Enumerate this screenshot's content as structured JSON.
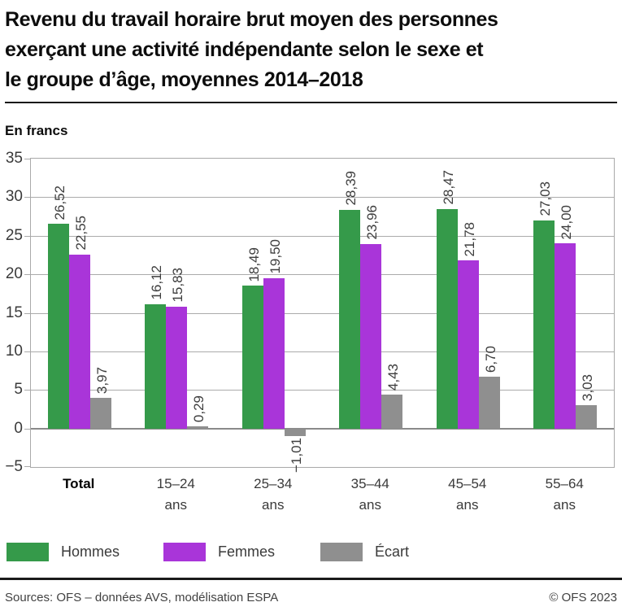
{
  "title": {
    "lines": [
      "Revenu du travail horaire brut moyen des personnes",
      "exerçant une activité indépendante selon le sexe et",
      "le groupe d’âge, moyennes 2014–2018"
    ]
  },
  "unit_label": "En francs",
  "chart_data": {
    "type": "bar",
    "title": "Revenu du travail horaire brut moyen des personnes exerçant une activité indépendante selon le sexe et le groupe d’âge, moyennes 2014–2018",
    "ylabel": "En francs",
    "xlabel": "",
    "ylim": [
      -5,
      35
    ],
    "ytick_step": 5,
    "grid": true,
    "legend_position": "bottom",
    "decimal_separator": ",",
    "categories": [
      {
        "line1": "Total",
        "line2": "",
        "bold": true
      },
      {
        "line1": "15–24",
        "line2": "ans",
        "bold": false
      },
      {
        "line1": "25–34",
        "line2": "ans",
        "bold": false
      },
      {
        "line1": "35–44",
        "line2": "ans",
        "bold": false
      },
      {
        "line1": "45–54",
        "line2": "ans",
        "bold": false
      },
      {
        "line1": "55–64",
        "line2": "ans",
        "bold": false
      }
    ],
    "series": [
      {
        "name": "Hommes",
        "color": "#359a4a",
        "values": [
          26.52,
          16.12,
          18.49,
          28.39,
          28.47,
          27.03
        ]
      },
      {
        "name": "Femmes",
        "color": "#a935d9",
        "values": [
          22.55,
          15.83,
          19.5,
          23.96,
          21.78,
          24.0
        ]
      },
      {
        "name": "Écart",
        "color": "#8f8f8f",
        "values": [
          3.97,
          0.29,
          -1.01,
          4.43,
          6.7,
          3.03
        ]
      }
    ]
  },
  "footer": {
    "source": "Sources: OFS – données AVS, modélisation ESPA",
    "copyright": "© OFS 2023"
  },
  "colors": {
    "grid": "#ababab",
    "zero_line": "#8a8a8a",
    "plot_border": "#a9a9a9",
    "label_text": "#3d3d3d"
  }
}
